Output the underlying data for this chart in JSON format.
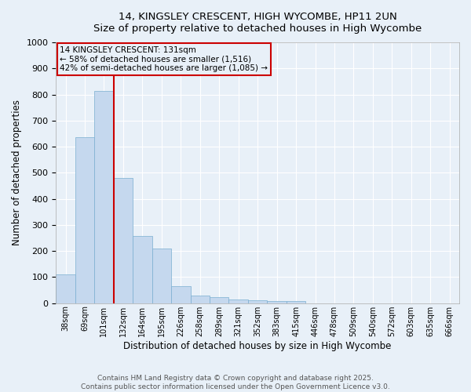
{
  "title_line1": "14, KINGSLEY CRESCENT, HIGH WYCOMBE, HP11 2UN",
  "title_line2": "Size of property relative to detached houses in High Wycombe",
  "xlabel": "Distribution of detached houses by size in High Wycombe",
  "ylabel": "Number of detached properties",
  "categories": [
    "38sqm",
    "69sqm",
    "101sqm",
    "132sqm",
    "164sqm",
    "195sqm",
    "226sqm",
    "258sqm",
    "289sqm",
    "321sqm",
    "352sqm",
    "383sqm",
    "415sqm",
    "446sqm",
    "478sqm",
    "509sqm",
    "540sqm",
    "572sqm",
    "603sqm",
    "635sqm",
    "666sqm"
  ],
  "values": [
    110,
    635,
    815,
    480,
    257,
    210,
    65,
    28,
    22,
    15,
    10,
    8,
    8,
    0,
    0,
    0,
    0,
    0,
    0,
    0,
    0
  ],
  "bar_color": "#c5d8ee",
  "bar_edge_color": "#7aaed0",
  "vline_color": "#cc0000",
  "annotation_box_color": "#cc0000",
  "annotation_text_line1": "14 KINGSLEY CRESCENT: 131sqm",
  "annotation_text_line2": "← 58% of detached houses are smaller (1,516)",
  "annotation_text_line3": "42% of semi-detached houses are larger (1,085) →",
  "ylim": [
    0,
    1000
  ],
  "yticks": [
    0,
    100,
    200,
    300,
    400,
    500,
    600,
    700,
    800,
    900,
    1000
  ],
  "bg_color": "#e8f0f8",
  "grid_color": "#ffffff",
  "footer_line1": "Contains HM Land Registry data © Crown copyright and database right 2025.",
  "footer_line2": "Contains public sector information licensed under the Open Government Licence v3.0."
}
